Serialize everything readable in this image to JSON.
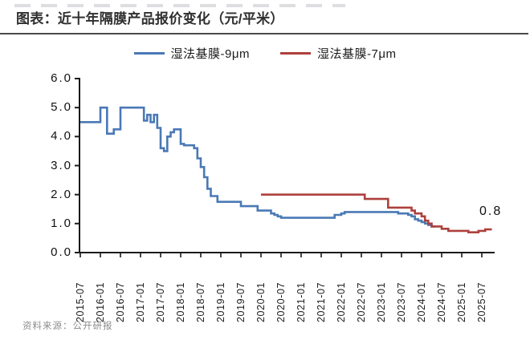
{
  "header": {
    "title": "图表：近十年隔膜产品报价变化（元/平米）"
  },
  "source": {
    "label": "资料来源：公开研报"
  },
  "chart_data": {
    "type": "line",
    "title": "近十年隔膜产品报价变化（元/平米）",
    "unit": "元/平米",
    "step_style": true,
    "grid": false,
    "legend_position": "top",
    "axis_color": "#1a1a1a",
    "ylim": [
      0,
      6
    ],
    "y_tick_labels": [
      "6.0",
      "5.0",
      "4.0",
      "3.0",
      "2.0",
      "1.0",
      "0.0"
    ],
    "x_tick_labels": [
      "2015-07",
      "2016-01",
      "2016-07",
      "2017-01",
      "2017-07",
      "2018-01",
      "2018-07",
      "2019-01",
      "2019-07",
      "2020-01",
      "2020-07",
      "2021-01",
      "2021-07",
      "2022-01",
      "2022-07",
      "2023-01",
      "2023-07",
      "2024-01",
      "2024-07",
      "2025-01",
      "2025-07"
    ],
    "series": [
      {
        "name": "湿法基膜-9μm",
        "color": "#4a79b5",
        "end": "2024-05",
        "step_points": [
          [
            "2015-07",
            4.5
          ],
          [
            "2016-01",
            5.0
          ],
          [
            "2016-03",
            4.1
          ],
          [
            "2016-05",
            4.25
          ],
          [
            "2016-07",
            5.0
          ],
          [
            "2017-02",
            4.55
          ],
          [
            "2017-03",
            4.75
          ],
          [
            "2017-04",
            4.5
          ],
          [
            "2017-05",
            4.75
          ],
          [
            "2017-06",
            4.3
          ],
          [
            "2017-07",
            3.6
          ],
          [
            "2017-08",
            3.5
          ],
          [
            "2017-09",
            4.0
          ],
          [
            "2017-10",
            4.15
          ],
          [
            "2017-11",
            4.25
          ],
          [
            "2018-01",
            3.75
          ],
          [
            "2018-02",
            3.7
          ],
          [
            "2018-05",
            3.6
          ],
          [
            "2018-06",
            3.25
          ],
          [
            "2018-07",
            2.95
          ],
          [
            "2018-08",
            2.6
          ],
          [
            "2018-09",
            2.2
          ],
          [
            "2018-10",
            1.95
          ],
          [
            "2018-12",
            1.75
          ],
          [
            "2019-07",
            1.6
          ],
          [
            "2019-12",
            1.45
          ],
          [
            "2020-04",
            1.35
          ],
          [
            "2020-05",
            1.3
          ],
          [
            "2020-06",
            1.25
          ],
          [
            "2020-07",
            1.2
          ],
          [
            "2021-11",
            1.3
          ],
          [
            "2022-01",
            1.35
          ],
          [
            "2022-02",
            1.4
          ],
          [
            "2023-06",
            1.35
          ],
          [
            "2023-09",
            1.3
          ],
          [
            "2023-10",
            1.25
          ],
          [
            "2023-11",
            1.15
          ],
          [
            "2023-12",
            1.1
          ],
          [
            "2024-01",
            1.05
          ],
          [
            "2024-02",
            1.0
          ],
          [
            "2024-03",
            0.95
          ],
          [
            "2024-04",
            0.9
          ]
        ]
      },
      {
        "name": "湿法基膜-7μm",
        "color": "#ae403c",
        "end": "2025-10",
        "step_points": [
          [
            "2020-01",
            2.0
          ],
          [
            "2022-08",
            1.85
          ],
          [
            "2023-03",
            1.55
          ],
          [
            "2023-10",
            1.45
          ],
          [
            "2023-11",
            1.35
          ],
          [
            "2024-01",
            1.25
          ],
          [
            "2024-02",
            1.1
          ],
          [
            "2024-03",
            1.0
          ],
          [
            "2024-04",
            0.9
          ],
          [
            "2024-07",
            0.82
          ],
          [
            "2024-09",
            0.75
          ],
          [
            "2025-03",
            0.7
          ],
          [
            "2025-06",
            0.75
          ],
          [
            "2025-08",
            0.8
          ]
        ]
      }
    ],
    "annotation": {
      "text": "0.8",
      "series": "湿法基膜-7μm",
      "x": "2025-09",
      "y": 0.8
    }
  }
}
